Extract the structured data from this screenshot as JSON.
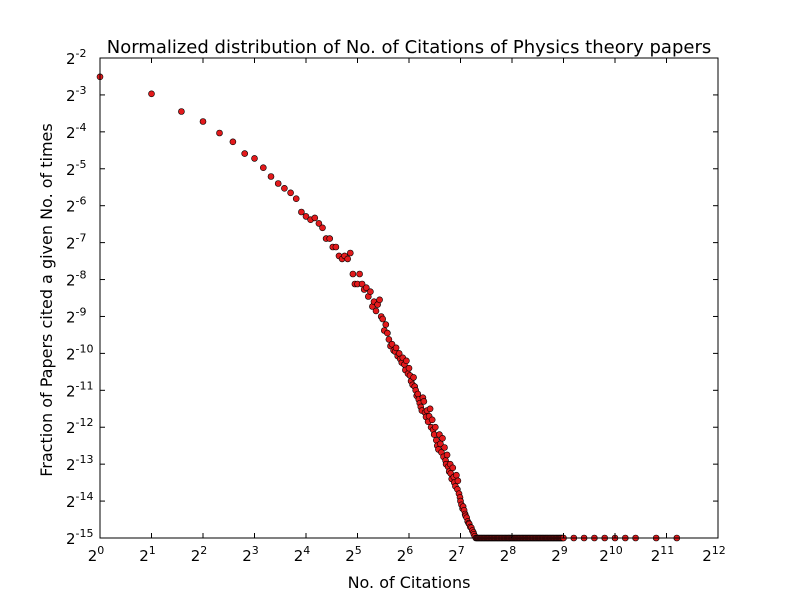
{
  "chart_data": {
    "type": "scatter",
    "title": "Normalized distribution of No. of Citations of Physics theory papers",
    "xlabel": "No. of Citations",
    "ylabel": "Fraction of Papers cited a given No. of times",
    "x_scale": "log2",
    "y_scale": "log2",
    "x_exponent_range": [
      0,
      12
    ],
    "y_exponent_range": [
      -15,
      -2
    ],
    "x_ticks": [
      {
        "base": "2",
        "exp": "0"
      },
      {
        "base": "2",
        "exp": "1"
      },
      {
        "base": "2",
        "exp": "2"
      },
      {
        "base": "2",
        "exp": "3"
      },
      {
        "base": "2",
        "exp": "4"
      },
      {
        "base": "2",
        "exp": "5"
      },
      {
        "base": "2",
        "exp": "6"
      },
      {
        "base": "2",
        "exp": "7"
      },
      {
        "base": "2",
        "exp": "8"
      },
      {
        "base": "2",
        "exp": "9"
      },
      {
        "base": "2",
        "exp": "10"
      },
      {
        "base": "2",
        "exp": "11"
      },
      {
        "base": "2",
        "exp": "12"
      }
    ],
    "y_ticks": [
      {
        "base": "2",
        "exp": "-2"
      },
      {
        "base": "2",
        "exp": "-3"
      },
      {
        "base": "2",
        "exp": "-4"
      },
      {
        "base": "2",
        "exp": "-5"
      },
      {
        "base": "2",
        "exp": "-6"
      },
      {
        "base": "2",
        "exp": "-7"
      },
      {
        "base": "2",
        "exp": "-8"
      },
      {
        "base": "2",
        "exp": "-9"
      },
      {
        "base": "2",
        "exp": "-10"
      },
      {
        "base": "2",
        "exp": "-11"
      },
      {
        "base": "2",
        "exp": "-12"
      },
      {
        "base": "2",
        "exp": "-13"
      },
      {
        "base": "2",
        "exp": "-14"
      },
      {
        "base": "2",
        "exp": "-15"
      }
    ],
    "grid": false,
    "legend": "none",
    "marker_color": "#e31a1c",
    "marker_edge_color": "#000000",
    "points_log2": [
      [
        0,
        -2.51
      ],
      [
        1,
        -2.97
      ],
      [
        1.58,
        -3.45
      ],
      [
        2,
        -3.72
      ],
      [
        2.32,
        -4.03
      ],
      [
        2.58,
        -4.27
      ],
      [
        2.81,
        -4.59
      ],
      [
        3,
        -4.72
      ],
      [
        3.17,
        -4.97
      ],
      [
        3.32,
        -5.21
      ],
      [
        3.46,
        -5.4
      ],
      [
        3.58,
        -5.53
      ],
      [
        3.7,
        -5.65
      ],
      [
        3.81,
        -5.81
      ],
      [
        3.91,
        -6.17
      ],
      [
        4,
        -6.29
      ],
      [
        4.09,
        -6.38
      ],
      [
        4.17,
        -6.33
      ],
      [
        4.25,
        -6.48
      ],
      [
        4.32,
        -6.6
      ],
      [
        4.39,
        -6.89
      ],
      [
        4.46,
        -6.89
      ],
      [
        4.52,
        -7.12
      ],
      [
        4.58,
        -7.12
      ],
      [
        4.64,
        -7.36
      ],
      [
        4.7,
        -7.44
      ],
      [
        4.75,
        -7.36
      ],
      [
        4.81,
        -7.44
      ],
      [
        4.86,
        -7.28
      ],
      [
        4.91,
        -7.85
      ],
      [
        4.95,
        -8.12
      ],
      [
        5,
        -8.12
      ],
      [
        5.04,
        -7.85
      ],
      [
        5.09,
        -8.12
      ],
      [
        5.13,
        -8.27
      ],
      [
        5.17,
        -8.22
      ],
      [
        5.21,
        -8.46
      ],
      [
        5.25,
        -8.33
      ],
      [
        5.29,
        -8.73
      ],
      [
        5.32,
        -8.6
      ],
      [
        5.36,
        -8.85
      ],
      [
        5.39,
        -8.68
      ],
      [
        5.43,
        -8.55
      ],
      [
        5.46,
        -9.0
      ],
      [
        5.49,
        -9.07
      ],
      [
        5.52,
        -9.38
      ],
      [
        5.55,
        -9.22
      ],
      [
        5.58,
        -9.45
      ],
      [
        5.61,
        -9.62
      ],
      [
        5.64,
        -9.8
      ],
      [
        5.67,
        -9.75
      ],
      [
        5.7,
        -9.92
      ],
      [
        5.73,
        -9.95
      ],
      [
        5.75,
        -9.85
      ],
      [
        5.78,
        -10.07
      ],
      [
        5.81,
        -10.0
      ],
      [
        5.83,
        -10.15
      ],
      [
        5.86,
        -10.25
      ],
      [
        5.88,
        -10.12
      ],
      [
        5.91,
        -10.3
      ],
      [
        5.93,
        -10.45
      ],
      [
        5.95,
        -10.2
      ],
      [
        5.98,
        -10.55
      ],
      [
        6.0,
        -10.4
      ],
      [
        6.02,
        -10.6
      ],
      [
        6.04,
        -10.75
      ],
      [
        6.07,
        -10.85
      ],
      [
        6.09,
        -10.65
      ],
      [
        6.11,
        -10.9
      ],
      [
        6.13,
        -11.0
      ],
      [
        6.15,
        -11.15
      ],
      [
        6.17,
        -11.1
      ],
      [
        6.19,
        -11.25
      ],
      [
        6.21,
        -11.35
      ],
      [
        6.23,
        -11.45
      ],
      [
        6.25,
        -11.55
      ],
      [
        6.27,
        -11.2
      ],
      [
        6.29,
        -11.3
      ],
      [
        6.31,
        -11.6
      ],
      [
        6.33,
        -11.72
      ],
      [
        6.35,
        -11.55
      ],
      [
        6.37,
        -11.85
      ],
      [
        6.39,
        -11.7
      ],
      [
        6.41,
        -11.5
      ],
      [
        6.43,
        -12.0
      ],
      [
        6.45,
        -11.8
      ],
      [
        6.47,
        -12.07
      ],
      [
        6.49,
        -12.2
      ],
      [
        6.51,
        -12.0
      ],
      [
        6.53,
        -12.35
      ],
      [
        6.55,
        -12.5
      ],
      [
        6.57,
        -12.6
      ],
      [
        6.59,
        -12.2
      ],
      [
        6.61,
        -12.45
      ],
      [
        6.63,
        -12.68
      ],
      [
        6.65,
        -12.3
      ],
      [
        6.67,
        -12.8
      ],
      [
        6.69,
        -12.55
      ],
      [
        6.71,
        -12.9
      ],
      [
        6.72,
        -13.0
      ],
      [
        6.74,
        -12.75
      ],
      [
        6.76,
        -13.07
      ],
      [
        6.78,
        -13.2
      ],
      [
        6.8,
        -13.0
      ],
      [
        6.81,
        -13.25
      ],
      [
        6.83,
        -13.4
      ],
      [
        6.85,
        -13.1
      ],
      [
        6.87,
        -13.35
      ],
      [
        6.88,
        -13.5
      ],
      [
        6.9,
        -13.6
      ],
      [
        6.92,
        -13.3
      ],
      [
        6.94,
        -13.68
      ],
      [
        6.95,
        -13.45
      ],
      [
        6.97,
        -13.8
      ],
      [
        6.99,
        -13.9
      ],
      [
        7.0,
        -14.0
      ],
      [
        7.02,
        -14.1
      ],
      [
        7.04,
        -14.2
      ],
      [
        7.05,
        -14.15
      ],
      [
        7.07,
        -14.25
      ],
      [
        7.09,
        -14.35
      ],
      [
        7.1,
        -14.4
      ],
      [
        7.12,
        -14.45
      ],
      [
        7.14,
        -14.55
      ],
      [
        7.16,
        -14.6
      ],
      [
        7.17,
        -14.62
      ],
      [
        7.19,
        -14.7
      ],
      [
        7.21,
        -14.72
      ],
      [
        7.23,
        -14.8
      ],
      [
        7.25,
        -14.85
      ],
      [
        7.26,
        -14.9
      ],
      [
        7.28,
        -14.95
      ],
      [
        7.3,
        -15.0
      ],
      [
        7.32,
        -15.0
      ],
      [
        7.34,
        -15.0
      ],
      [
        7.36,
        -15.0
      ],
      [
        7.38,
        -15.0
      ],
      [
        7.4,
        -15.0
      ],
      [
        7.42,
        -15.0
      ],
      [
        7.44,
        -15.0
      ],
      [
        7.46,
        -15.0
      ],
      [
        7.48,
        -15.0
      ],
      [
        7.5,
        -15.0
      ],
      [
        7.52,
        -15.0
      ],
      [
        7.54,
        -15.0
      ],
      [
        7.56,
        -15.0
      ],
      [
        7.58,
        -15.0
      ],
      [
        7.6,
        -15.0
      ],
      [
        7.62,
        -15.0
      ],
      [
        7.64,
        -15.0
      ],
      [
        7.66,
        -15.0
      ],
      [
        7.68,
        -15.0
      ],
      [
        7.7,
        -15.0
      ],
      [
        7.72,
        -15.0
      ],
      [
        7.74,
        -15.0
      ],
      [
        7.76,
        -15.0
      ],
      [
        7.78,
        -15.0
      ],
      [
        7.8,
        -15.0
      ],
      [
        7.82,
        -15.0
      ],
      [
        7.84,
        -15.0
      ],
      [
        7.86,
        -15.0
      ],
      [
        7.88,
        -15.0
      ],
      [
        7.9,
        -15.0
      ],
      [
        7.92,
        -15.0
      ],
      [
        7.94,
        -15.0
      ],
      [
        7.96,
        -15.0
      ],
      [
        7.98,
        -15.0
      ],
      [
        8.0,
        -15.0
      ],
      [
        8.02,
        -15.0
      ],
      [
        8.04,
        -15.0
      ],
      [
        8.06,
        -15.0
      ],
      [
        8.08,
        -15.0
      ],
      [
        8.1,
        -15.0
      ],
      [
        8.12,
        -15.0
      ],
      [
        8.14,
        -15.0
      ],
      [
        8.16,
        -15.0
      ],
      [
        8.18,
        -15.0
      ],
      [
        8.2,
        -15.0
      ],
      [
        8.22,
        -15.0
      ],
      [
        8.24,
        -15.0
      ],
      [
        8.26,
        -15.0
      ],
      [
        8.28,
        -15.0
      ],
      [
        8.3,
        -15.0
      ],
      [
        8.32,
        -15.0
      ],
      [
        8.34,
        -15.0
      ],
      [
        8.36,
        -15.0
      ],
      [
        8.38,
        -15.0
      ],
      [
        8.4,
        -15.0
      ],
      [
        8.42,
        -15.0
      ],
      [
        8.44,
        -15.0
      ],
      [
        8.46,
        -15.0
      ],
      [
        8.48,
        -15.0
      ],
      [
        8.5,
        -15.0
      ],
      [
        8.52,
        -15.0
      ],
      [
        8.54,
        -15.0
      ],
      [
        8.56,
        -15.0
      ],
      [
        8.58,
        -15.0
      ],
      [
        8.6,
        -15.0
      ],
      [
        8.62,
        -15.0
      ],
      [
        8.64,
        -15.0
      ],
      [
        8.66,
        -15.0
      ],
      [
        8.68,
        -15.0
      ],
      [
        8.7,
        -15.0
      ],
      [
        8.72,
        -15.0
      ],
      [
        8.74,
        -15.0
      ],
      [
        8.76,
        -15.0
      ],
      [
        8.78,
        -15.0
      ],
      [
        8.8,
        -15.0
      ],
      [
        8.82,
        -15.0
      ],
      [
        8.84,
        -15.0
      ],
      [
        8.86,
        -15.0
      ],
      [
        8.88,
        -15.0
      ],
      [
        8.9,
        -15.0
      ],
      [
        8.92,
        -15.0
      ],
      [
        8.94,
        -15.0
      ],
      [
        8.96,
        -15.0
      ],
      [
        8.98,
        -15.0
      ],
      [
        9.0,
        -15.0
      ],
      [
        9.2,
        -15.0
      ],
      [
        9.4,
        -15.0
      ],
      [
        9.6,
        -15.0
      ],
      [
        9.8,
        -15.0
      ],
      [
        10.0,
        -15.0
      ],
      [
        10.2,
        -15.0
      ],
      [
        10.4,
        -15.0
      ],
      [
        10.8,
        -15.0
      ],
      [
        11.2,
        -15.0
      ]
    ]
  }
}
